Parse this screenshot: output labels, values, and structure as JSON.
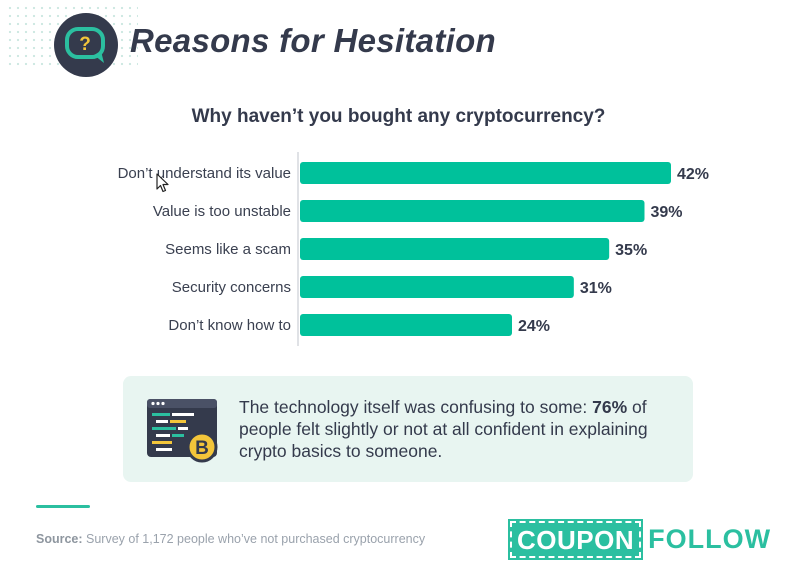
{
  "header": {
    "title": "Reasons for Hesitation",
    "badge_icon": "question-chat-bubble-icon"
  },
  "chart_data": {
    "type": "bar",
    "orientation": "horizontal",
    "title": "Why haven’t you bought any cryptocurrency?",
    "categories": [
      "Don’t understand its value",
      "Value is too unstable",
      "Seems like a scam",
      "Security concerns",
      "Don’t know how to"
    ],
    "values": [
      42,
      39,
      35,
      31,
      24
    ],
    "value_labels": [
      "42%",
      "39%",
      "35%",
      "31%",
      "24%"
    ],
    "xlim": [
      0,
      42
    ],
    "unit": "%",
    "bar_color": "#00c19b",
    "grid": false
  },
  "callout": {
    "icon": "crypto-code-window-icon",
    "text_before": "The technology itself was confusing to some: ",
    "highlight": "76%",
    "text_after": " of people felt slightly or not at all confident in explaining crypto basics to someone."
  },
  "footer": {
    "source_label": "Source:",
    "source_text": " Survey of 1,172 people who’ve not purchased cryptocurrency",
    "logo_box": "COUPON",
    "logo_word": "FOLLOW"
  },
  "colors": {
    "accent": "#2bbfa0",
    "dark": "#343a4c",
    "callout_bg": "#e8f5f1"
  }
}
